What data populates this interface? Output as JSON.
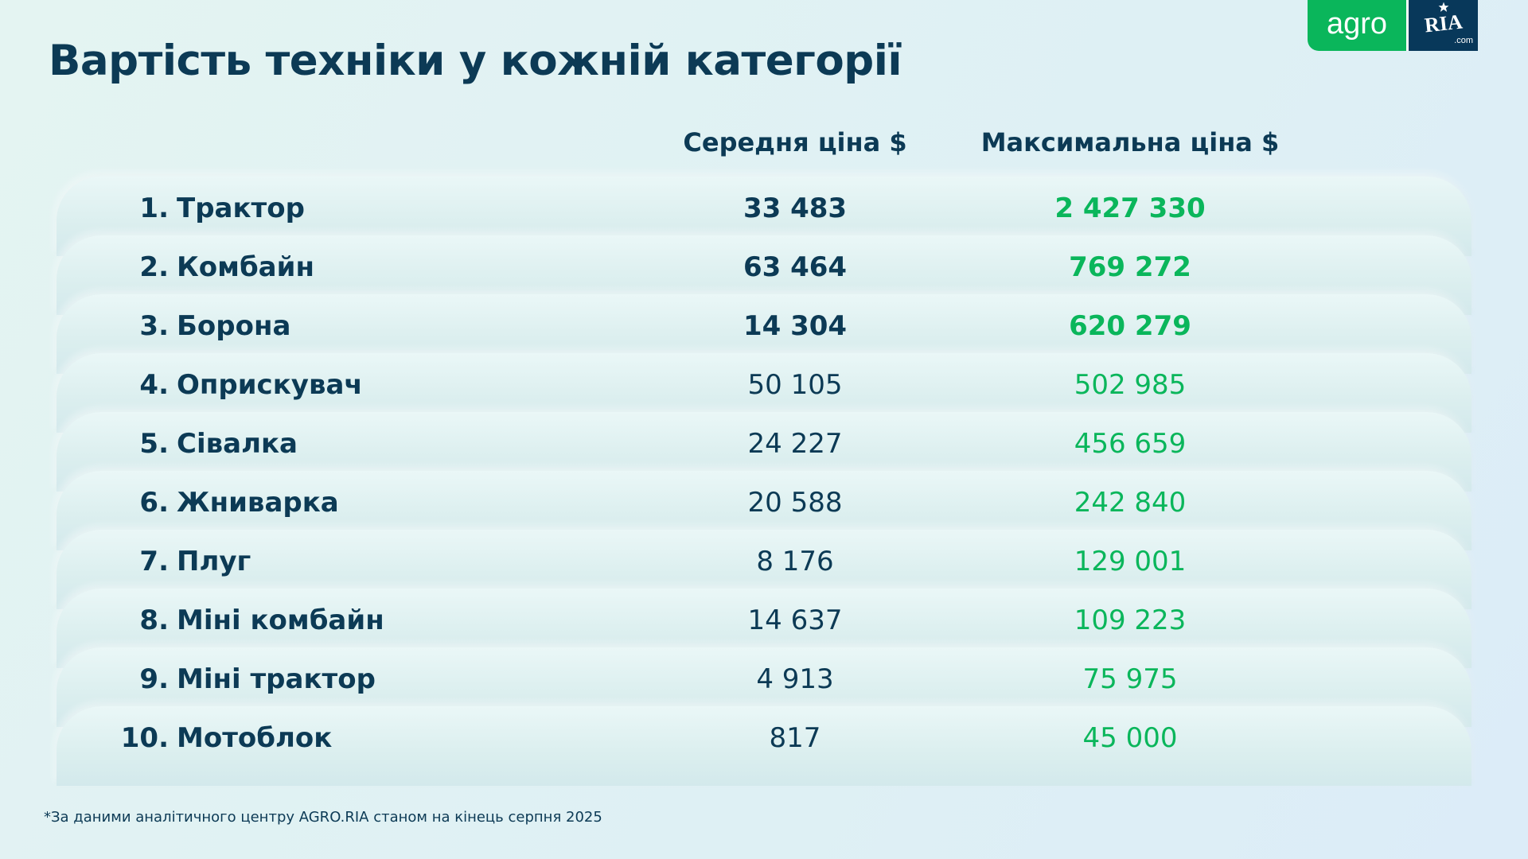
{
  "title": "Вартість техніки у кожній категорії",
  "logo": {
    "agro": "agro",
    "ria": "RIA",
    "domain": ".com"
  },
  "colors": {
    "primary": "#0c3a55",
    "accent": "#0ab65b"
  },
  "columns": {
    "avg": "Середня ціна $",
    "max": "Максимальна ціна $"
  },
  "rows": [
    {
      "num": "1.",
      "name": "Трактор",
      "avg": "33 483",
      "max": "2 427 330"
    },
    {
      "num": "2.",
      "name": "Комбайн",
      "avg": "63 464",
      "max": "769 272"
    },
    {
      "num": "3.",
      "name": "Борона",
      "avg": "14 304",
      "max": "620 279"
    },
    {
      "num": "4.",
      "name": "Оприскувач",
      "avg": "50 105",
      "max": "502 985"
    },
    {
      "num": "5.",
      "name": "Сівалка",
      "avg": "24 227",
      "max": "456 659"
    },
    {
      "num": "6.",
      "name": "Жниварка",
      "avg": "20 588",
      "max": "242 840"
    },
    {
      "num": "7.",
      "name": "Плуг",
      "avg": "8 176",
      "max": "129 001"
    },
    {
      "num": "8.",
      "name": "Міні комбайн",
      "avg": "14 637",
      "max": "109 223"
    },
    {
      "num": "9.",
      "name": "Міні трактор",
      "avg": "4 913",
      "max": "75 975"
    },
    {
      "num": "10.",
      "name": "Мотоблок",
      "avg": "817",
      "max": "45 000"
    }
  ],
  "footnote": "*За даними аналітичного центру AGRO.RIA станом на кінець серпня 2025"
}
